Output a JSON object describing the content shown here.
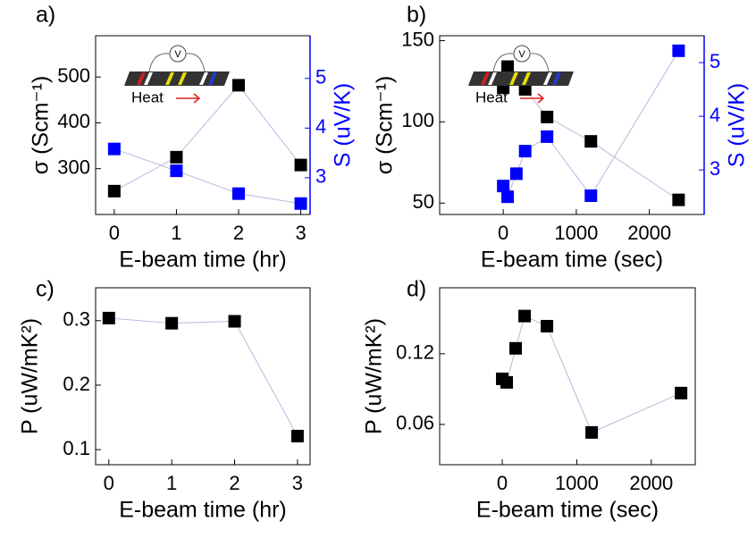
{
  "chart_data": [
    {
      "type": "line",
      "panel_label": "a)",
      "xlabel": "E-beam time (hr)",
      "ylabel": "σ (Scm⁻¹)",
      "y2label": "S (uV/K)",
      "annotations": [
        "V",
        "Heat"
      ],
      "x": [
        0,
        1,
        2,
        3
      ],
      "series": [
        {
          "name": "σ",
          "color": "#000000",
          "values": [
            251,
            325,
            482,
            308
          ]
        },
        {
          "name": "S",
          "color": "#0000ff",
          "axis": "y2",
          "values": [
            3.58,
            3.14,
            2.68,
            2.48
          ]
        }
      ],
      "xlim": [
        -0.3,
        3.15
      ],
      "xticks": [
        0,
        1,
        2,
        3
      ],
      "ylim": [
        200,
        590
      ],
      "yticks": [
        300,
        400,
        500
      ],
      "y2lim": [
        2.26,
        5.86
      ],
      "y2ticks": [
        3,
        4,
        5
      ],
      "line_color": "#b8b8e0"
    },
    {
      "type": "line",
      "panel_label": "b)",
      "xlabel": "E-beam time (sec)",
      "ylabel": "σ (Scm⁻¹)",
      "y2label": "S (uV/K)",
      "annotations": [
        "V",
        "Heat"
      ],
      "x": [
        0,
        60,
        180,
        300,
        600,
        1200,
        2400
      ],
      "series": [
        {
          "name": "σ",
          "color": "#000000",
          "values": [
            121,
            134,
            127,
            120,
            103,
            88,
            52
          ]
        },
        {
          "name": "S",
          "color": "#0000ff",
          "axis": "y2",
          "values": [
            2.7,
            2.5,
            2.93,
            3.35,
            3.62,
            2.52,
            5.22
          ]
        }
      ],
      "xlim": [
        -870,
        2750
      ],
      "xticks": [
        0,
        1000,
        2000
      ],
      "ylim": [
        43,
        153
      ],
      "yticks": [
        50,
        100,
        150
      ],
      "y2lim": [
        2.17,
        5.5
      ],
      "y2ticks": [
        3,
        4,
        5
      ],
      "line_color": "#b8b8e0"
    },
    {
      "type": "line",
      "panel_label": "c)",
      "xlabel": "E-beam time (hr)",
      "ylabel": "P (uW/mK²)",
      "x": [
        0,
        1,
        2,
        3
      ],
      "series": [
        {
          "name": "P",
          "color": "#000000",
          "values": [
            0.304,
            0.296,
            0.299,
            0.121
          ]
        }
      ],
      "xlim": [
        -0.21,
        3.2
      ],
      "xticks": [
        0,
        1,
        2,
        3
      ],
      "ylim": [
        0.0766,
        0.351
      ],
      "yticks": [
        0.1,
        0.2,
        0.3
      ],
      "line_color": "#b8b8e0"
    },
    {
      "type": "line",
      "panel_label": "d)",
      "xlabel": "E-beam time (sec)",
      "ylabel": "P (uW/mK²)",
      "x": [
        0,
        60,
        180,
        300,
        600,
        1200,
        2400
      ],
      "series": [
        {
          "name": "P",
          "color": "#000000",
          "values": [
            0.0987,
            0.0957,
            0.1246,
            0.152,
            0.1434,
            0.0532,
            0.0866
          ]
        }
      ],
      "xlim": [
        -840,
        2590
      ],
      "xticks": [
        0,
        1000,
        2000
      ],
      "ylim": [
        0.0258,
        0.176
      ],
      "yticks": [
        0.06,
        0.12
      ],
      "line_color": "#b8b8e0"
    }
  ]
}
